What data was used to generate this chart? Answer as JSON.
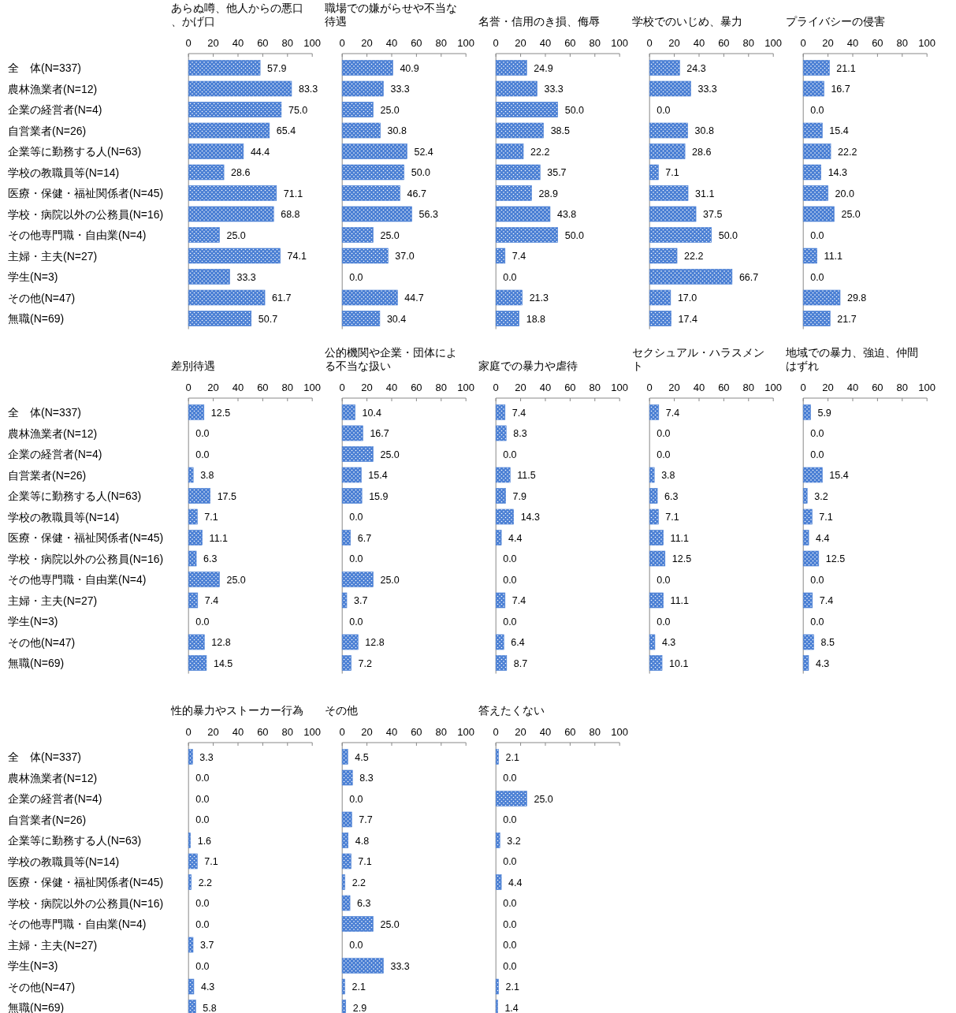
{
  "chart_data": [
    {
      "type": "bar",
      "orientation": "horizontal",
      "title": "あらぬ噂、他人からの悪口、かげ口",
      "categories": [
        "全　体(N=337)",
        "農林漁業者(N=12)",
        "企業の経営者(N=4)",
        "自営業者(N=26)",
        "企業等に勤務する人(N=63)",
        "学校の教職員等(N=14)",
        "医療・保健・福祉関係者(N=45)",
        "学校・病院以外の公務員(N=16)",
        "その他専門職・自由業(N=4)",
        "主婦・主夫(N=27)",
        "学生(N=3)",
        "その他(N=47)",
        "無職(N=69)"
      ],
      "values": [
        57.9,
        83.3,
        75.0,
        65.4,
        44.4,
        28.6,
        71.1,
        68.8,
        25.0,
        74.1,
        33.3,
        61.7,
        50.7
      ],
      "value_labels": [
        "57.9",
        "83.3",
        "75.0",
        "65.4",
        "44.4",
        "28.6",
        "71.1",
        "68.8",
        "25.0",
        "74.1",
        "33.3",
        "61.7",
        "50.7"
      ],
      "color": "#4a7fd4",
      "xlim": [
        0,
        100
      ],
      "xticks": [
        0,
        20,
        40,
        60,
        80,
        100
      ]
    },
    {
      "type": "bar",
      "orientation": "horizontal",
      "title": "職場での嫌がらせや不当な待遇",
      "categories": [
        "全　体(N=337)",
        "農林漁業者(N=12)",
        "企業の経営者(N=4)",
        "自営業者(N=26)",
        "企業等に勤務する人(N=63)",
        "学校の教職員等(N=14)",
        "医療・保健・福祉関係者(N=45)",
        "学校・病院以外の公務員(N=16)",
        "その他専門職・自由業(N=4)",
        "主婦・主夫(N=27)",
        "学生(N=3)",
        "その他(N=47)",
        "無職(N=69)"
      ],
      "values": [
        40.9,
        33.3,
        25.0,
        30.8,
        52.4,
        50.0,
        46.7,
        56.3,
        25.0,
        37.0,
        0.0,
        44.7,
        30.4
      ],
      "value_labels": [
        "40.9",
        "33.3",
        "25.0",
        "30.8",
        "52.4",
        "50.0",
        "46.7",
        "56.3",
        "25.0",
        "37.0",
        "0.0",
        "44.7",
        "30.4"
      ],
      "color": "#4a7fd4",
      "xlim": [
        0,
        100
      ],
      "xticks": [
        0,
        20,
        40,
        60,
        80,
        100
      ],
      "tick_labels": "x"
    },
    {
      "type": "bar",
      "orientation": "horizontal",
      "title": "名誉・信用のき損、侮辱",
      "categories": [
        "全　体(N=337)",
        "農林漁業者(N=12)",
        "企業の経営者(N=4)",
        "自営業者(N=26)",
        "企業等に勤務する人(N=63)",
        "学校の教職員等(N=14)",
        "医療・保健・福祉関係者(N=45)",
        "学校・病院以外の公務員(N=16)",
        "その他専門職・自由業(N=4)",
        "主婦・主夫(N=27)",
        "学生(N=3)",
        "その他(N=47)",
        "無職(N=69)"
      ],
      "values": [
        24.9,
        33.3,
        50.0,
        38.5,
        22.2,
        35.7,
        28.9,
        43.8,
        50.0,
        7.4,
        0.0,
        21.3,
        18.8
      ],
      "value_labels": [
        "24.9",
        "33.3",
        "50.0",
        "38.5",
        "22.2",
        "35.7",
        "28.9",
        "43.8",
        "50.0",
        "7.4",
        "0.0",
        "21.3",
        "18.8"
      ],
      "color": "#4a7fd4",
      "xlim": [
        0,
        100
      ],
      "xticks": [
        0,
        20,
        40,
        60,
        80,
        100
      ],
      "tick_labels": "x"
    },
    {
      "type": "bar",
      "orientation": "horizontal",
      "title": "学校でのいじめ、暴力",
      "categories": [
        "全　体(N=337)",
        "農林漁業者(N=12)",
        "企業の経営者(N=4)",
        "自営業者(N=26)",
        "企業等に勤務する人(N=63)",
        "学校の教職員等(N=14)",
        "医療・保健・福祉関係者(N=45)",
        "学校・病院以外の公務員(N=16)",
        "その他専門職・自由業(N=4)",
        "主婦・主夫(N=27)",
        "学生(N=3)",
        "その他(N=47)",
        "無職(N=69)"
      ],
      "values": [
        24.3,
        33.3,
        0.0,
        30.8,
        28.6,
        7.1,
        31.1,
        37.5,
        50.0,
        22.2,
        66.7,
        17.0,
        17.4
      ],
      "value_labels": [
        "24.3",
        "33.3",
        "0.0",
        "30.8",
        "28.6",
        "7.1",
        "31.1",
        "37.5",
        "50.0",
        "22.2",
        "66.7",
        "17.0",
        "17.4"
      ],
      "color": "#4a7fd4",
      "xlim": [
        0,
        100
      ],
      "xticks": [
        0,
        20,
        40,
        60,
        80,
        100
      ],
      "tick_labels": "x"
    },
    {
      "type": "bar",
      "orientation": "horizontal",
      "title": "プライバシーの侵害",
      "categories": [
        "全　体(N=337)",
        "農林漁業者(N=12)",
        "企業の経営者(N=4)",
        "自営業者(N=26)",
        "企業等に勤務する人(N=63)",
        "学校の教職員等(N=14)",
        "医療・保健・福祉関係者(N=45)",
        "学校・病院以外の公務員(N=16)",
        "その他専門職・自由業(N=4)",
        "主婦・主夫(N=27)",
        "学生(N=3)",
        "その他(N=47)",
        "無職(N=69)"
      ],
      "values": [
        21.1,
        16.7,
        0.0,
        15.4,
        22.2,
        14.3,
        20.0,
        25.0,
        0.0,
        11.1,
        0.0,
        29.8,
        21.7
      ],
      "value_labels": [
        "21.1",
        "16.7",
        "0.0",
        "15.4",
        "22.2",
        "14.3",
        "20.0",
        "25.0",
        "0.0",
        "11.1",
        "0.0",
        "29.8",
        "21.7"
      ],
      "color": "#4a7fd4",
      "xlim": [
        0,
        100
      ],
      "xticks": [
        0,
        20,
        40,
        60,
        80,
        100
      ],
      "tick_labels": "x"
    },
    {
      "type": "bar",
      "orientation": "horizontal",
      "title": "差別待遇",
      "categories": [
        "全　体(N=337)",
        "農林漁業者(N=12)",
        "企業の経営者(N=4)",
        "自営業者(N=26)",
        "企業等に勤務する人(N=63)",
        "学校の教職員等(N=14)",
        "医療・保健・福祉関係者(N=45)",
        "学校・病院以外の公務員(N=16)",
        "その他専門職・自由業(N=4)",
        "主婦・主夫(N=27)",
        "学生(N=3)",
        "その他(N=47)",
        "無職(N=69)"
      ],
      "values": [
        12.5,
        0.0,
        0.0,
        3.8,
        17.5,
        7.1,
        11.1,
        6.3,
        25.0,
        7.4,
        0.0,
        12.8,
        14.5
      ],
      "value_labels": [
        "12.5",
        "0.0",
        "0.0",
        "3.8",
        "17.5",
        "7.1",
        "11.1",
        "6.3",
        "25.0",
        "7.4",
        "0.0",
        "12.8",
        "14.5"
      ],
      "color": "#4a7fd4",
      "xlim": [
        0,
        100
      ],
      "xticks": [
        0,
        20,
        40,
        60,
        80,
        100
      ]
    },
    {
      "type": "bar",
      "orientation": "horizontal",
      "title": "公的機関や企業・団体による不当な扱い",
      "categories": [
        "全　体(N=337)",
        "農林漁業者(N=12)",
        "企業の経営者(N=4)",
        "自営業者(N=26)",
        "企業等に勤務する人(N=63)",
        "学校の教職員等(N=14)",
        "医療・保健・福祉関係者(N=45)",
        "学校・病院以外の公務員(N=16)",
        "その他専門職・自由業(N=4)",
        "主婦・主夫(N=27)",
        "学生(N=3)",
        "その他(N=47)",
        "無職(N=69)"
      ],
      "values": [
        10.4,
        16.7,
        25.0,
        15.4,
        15.9,
        0.0,
        6.7,
        0.0,
        25.0,
        3.7,
        0.0,
        12.8,
        7.2
      ],
      "value_labels": [
        "10.4",
        "16.7",
        "25.0",
        "15.4",
        "15.9",
        "0.0",
        "6.7",
        "0.0",
        "25.0",
        "3.7",
        "0.0",
        "12.8",
        "7.2"
      ],
      "color": "#4a7fd4",
      "xlim": [
        0,
        100
      ],
      "xticks": [
        0,
        20,
        40,
        60,
        80,
        100
      ],
      "tick_labels": "x"
    },
    {
      "type": "bar",
      "orientation": "horizontal",
      "title": "家庭での暴力や虐待",
      "categories": [
        "全　体(N=337)",
        "農林漁業者(N=12)",
        "企業の経営者(N=4)",
        "自営業者(N=26)",
        "企業等に勤務する人(N=63)",
        "学校の教職員等(N=14)",
        "医療・保健・福祉関係者(N=45)",
        "学校・病院以外の公務員(N=16)",
        "その他専門職・自由業(N=4)",
        "主婦・主夫(N=27)",
        "学生(N=3)",
        "その他(N=47)",
        "無職(N=69)"
      ],
      "values": [
        7.4,
        8.3,
        0.0,
        11.5,
        7.9,
        14.3,
        4.4,
        0.0,
        0.0,
        7.4,
        0.0,
        6.4,
        8.7
      ],
      "value_labels": [
        "7.4",
        "8.3",
        "0.0",
        "11.5",
        "7.9",
        "14.3",
        "4.4",
        "0.0",
        "0.0",
        "7.4",
        "0.0",
        "6.4",
        "8.7"
      ],
      "color": "#4a7fd4",
      "xlim": [
        0,
        100
      ],
      "xticks": [
        0,
        20,
        40,
        60,
        80,
        100
      ],
      "tick_labels": "x"
    },
    {
      "type": "bar",
      "orientation": "horizontal",
      "title": "セクシュアル・ハラスメント",
      "categories": [
        "全　体(N=337)",
        "農林漁業者(N=12)",
        "企業の経営者(N=4)",
        "自営業者(N=26)",
        "企業等に勤務する人(N=63)",
        "学校の教職員等(N=14)",
        "医療・保健・福祉関係者(N=45)",
        "学校・病院以外の公務員(N=16)",
        "その他専門職・自由業(N=4)",
        "主婦・主夫(N=27)",
        "学生(N=3)",
        "その他(N=47)",
        "無職(N=69)"
      ],
      "values": [
        7.4,
        0.0,
        0.0,
        3.8,
        6.3,
        7.1,
        11.1,
        12.5,
        0.0,
        11.1,
        0.0,
        4.3,
        10.1
      ],
      "value_labels": [
        "7.4",
        "0.0",
        "0.0",
        "3.8",
        "6.3",
        "7.1",
        "11.1",
        "12.5",
        "0.0",
        "11.1",
        "0.0",
        "4.3",
        "10.1"
      ],
      "color": "#4a7fd4",
      "xlim": [
        0,
        100
      ],
      "xticks": [
        0,
        20,
        40,
        60,
        80,
        100
      ],
      "tick_labels": "x"
    },
    {
      "type": "bar",
      "orientation": "horizontal",
      "title": "地域での暴力、強迫、仲間はずれ",
      "categories": [
        "全　体(N=337)",
        "農林漁業者(N=12)",
        "企業の経営者(N=4)",
        "自営業者(N=26)",
        "企業等に勤務する人(N=63)",
        "学校の教職員等(N=14)",
        "医療・保健・福祉関係者(N=45)",
        "学校・病院以外の公務員(N=16)",
        "その他専門職・自由業(N=4)",
        "主婦・主夫(N=27)",
        "学生(N=3)",
        "その他(N=47)",
        "無職(N=69)"
      ],
      "values": [
        5.9,
        0.0,
        0.0,
        15.4,
        3.2,
        7.1,
        4.4,
        12.5,
        0.0,
        7.4,
        0.0,
        8.5,
        4.3
      ],
      "value_labels": [
        "5.9",
        "0.0",
        "0.0",
        "15.4",
        "3.2",
        "7.1",
        "4.4",
        "12.5",
        "0.0",
        "7.4",
        "0.0",
        "8.5",
        "4.3"
      ],
      "color": "#4a7fd4",
      "xlim": [
        0,
        100
      ],
      "xticks": [
        0,
        20,
        40,
        60,
        80,
        100
      ],
      "tick_labels": "x"
    },
    {
      "type": "bar",
      "orientation": "horizontal",
      "title": "性的暴力やストーカー行為",
      "categories": [
        "全　体(N=337)",
        "農林漁業者(N=12)",
        "企業の経営者(N=4)",
        "自営業者(N=26)",
        "企業等に勤務する人(N=63)",
        "学校の教職員等(N=14)",
        "医療・保健・福祉関係者(N=45)",
        "学校・病院以外の公務員(N=16)",
        "その他専門職・自由業(N=4)",
        "主婦・主夫(N=27)",
        "学生(N=3)",
        "その他(N=47)",
        "無職(N=69)"
      ],
      "values": [
        3.3,
        0.0,
        0.0,
        0.0,
        1.6,
        7.1,
        2.2,
        0.0,
        0.0,
        3.7,
        0.0,
        4.3,
        5.8
      ],
      "value_labels": [
        "3.3",
        "0.0",
        "0.0",
        "0.0",
        "1.6",
        "7.1",
        "2.2",
        "0.0",
        "0.0",
        "3.7",
        "0.0",
        "4.3",
        "5.8"
      ],
      "color": "#4a7fd4",
      "xlim": [
        0,
        100
      ],
      "xticks": [
        0,
        20,
        40,
        60,
        80,
        100
      ]
    },
    {
      "type": "bar",
      "orientation": "horizontal",
      "title": "その他",
      "categories": [
        "全　体(N=337)",
        "農林漁業者(N=12)",
        "企業の経営者(N=4)",
        "自営業者(N=26)",
        "企業等に勤務する人(N=63)",
        "学校の教職員等(N=14)",
        "医療・保健・福祉関係者(N=45)",
        "学校・病院以外の公務員(N=16)",
        "その他専門職・自由業(N=4)",
        "主婦・主夫(N=27)",
        "学生(N=3)",
        "その他(N=47)",
        "無職(N=69)"
      ],
      "values": [
        4.5,
        8.3,
        0.0,
        7.7,
        4.8,
        7.1,
        2.2,
        6.3,
        25.0,
        0.0,
        33.3,
        2.1,
        2.9
      ],
      "value_labels": [
        "4.5",
        "8.3",
        "0.0",
        "7.7",
        "4.8",
        "7.1",
        "2.2",
        "6.3",
        "25.0",
        "0.0",
        "33.3",
        "2.1",
        "2.9"
      ],
      "color": "#4a7fd4",
      "xlim": [
        0,
        100
      ],
      "xticks": [
        0,
        20,
        40,
        60,
        80,
        100
      ],
      "tick_labels": "x"
    },
    {
      "type": "bar",
      "orientation": "horizontal",
      "title": "答えたくない",
      "categories": [
        "全　体(N=337)",
        "農林漁業者(N=12)",
        "企業の経営者(N=4)",
        "自営業者(N=26)",
        "企業等に勤務する人(N=63)",
        "学校の教職員等(N=14)",
        "医療・保健・福祉関係者(N=45)",
        "学校・病院以外の公務員(N=16)",
        "その他専門職・自由業(N=4)",
        "主婦・主夫(N=27)",
        "学生(N=3)",
        "その他(N=47)",
        "無職(N=69)"
      ],
      "values": [
        2.1,
        0.0,
        25.0,
        0.0,
        3.2,
        0.0,
        4.4,
        0.0,
        0.0,
        0.0,
        0.0,
        2.1,
        1.4
      ],
      "value_labels": [
        "2.1",
        "0.0",
        "25.0",
        "0.0",
        "3.2",
        "0.0",
        "4.4",
        "0.0",
        "0.0",
        "0.0",
        "0.0",
        "2.1",
        "1.4"
      ],
      "color": "#4a7fd4",
      "xlim": [
        0,
        100
      ],
      "xticks": [
        0,
        20,
        40,
        60,
        80,
        100
      ],
      "tick_labels": "x"
    }
  ]
}
